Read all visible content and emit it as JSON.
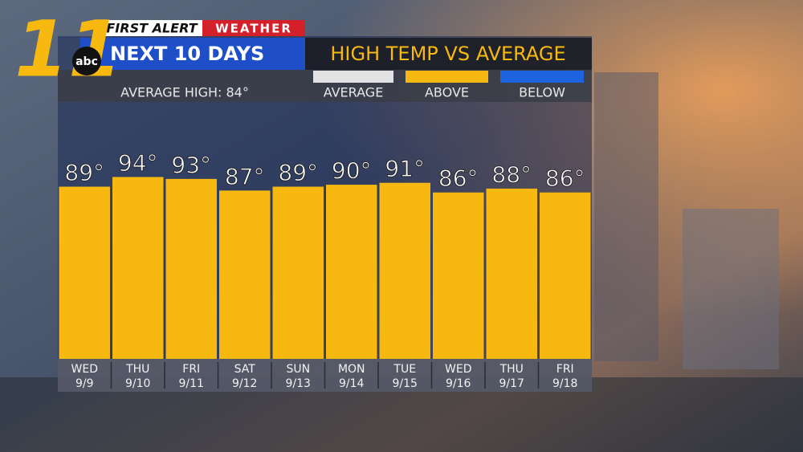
{
  "chart_data": {
    "type": "bar",
    "logo": {
      "number": "11",
      "network": "abc"
    },
    "brand": {
      "first": "FIRST ALERT",
      "second": "WEATHER"
    },
    "title": "NEXT 10 DAYS",
    "subtitle": "HIGH TEMP VS AVERAGE",
    "note": "AVERAGE HIGH: 84°",
    "legend": [
      {
        "name": "AVERAGE",
        "color": "#e2e2e2"
      },
      {
        "name": "ABOVE",
        "color": "#f7b90f"
      },
      {
        "name": "BELOW",
        "color": "#1e63e0"
      }
    ],
    "categories": [
      "WED",
      "THU",
      "FRI",
      "SAT",
      "SUN",
      "MON",
      "TUE",
      "WED",
      "THU",
      "FRI"
    ],
    "dates": [
      "9/9",
      "9/10",
      "9/11",
      "9/12",
      "9/13",
      "9/14",
      "9/15",
      "9/16",
      "9/17",
      "9/18"
    ],
    "values": [
      89,
      94,
      93,
      87,
      89,
      90,
      91,
      86,
      88,
      86
    ],
    "value_labels": [
      "89°",
      "94°",
      "93°",
      "87°",
      "89°",
      "90°",
      "91°",
      "86°",
      "88°",
      "86°"
    ],
    "color": "#f7b90f",
    "ylim": [
      0,
      100
    ]
  }
}
